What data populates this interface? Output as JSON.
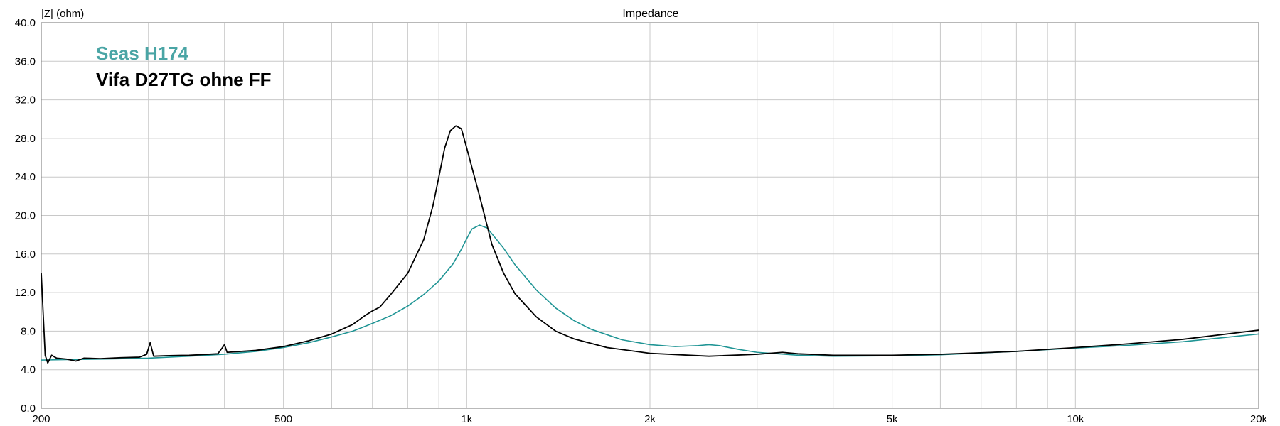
{
  "chart_data": {
    "type": "line",
    "title": "Impedance",
    "ylabel": "|Z| (ohm)",
    "xlabel": "",
    "xscale": "log",
    "xlim": [
      200,
      20000
    ],
    "ylim": [
      0,
      40
    ],
    "grid": true,
    "legend_position": "top-left",
    "y_ticks": [
      0,
      4,
      8,
      12,
      16,
      20,
      24,
      28,
      32,
      36,
      40
    ],
    "y_tick_labels": [
      "0.0",
      "4.0",
      "8.0",
      "12.0",
      "16.0",
      "20.0",
      "24.0",
      "28.0",
      "32.0",
      "36.0",
      "40.0"
    ],
    "x_ticks": [
      200,
      500,
      1000,
      2000,
      5000,
      10000,
      20000
    ],
    "x_tick_labels": [
      "200",
      "500",
      "1k",
      "2k",
      "5k",
      "10k",
      "20k"
    ],
    "x_minor_grid": [
      300,
      400,
      600,
      700,
      800,
      900,
      3000,
      4000,
      6000,
      7000,
      8000,
      9000
    ],
    "series": [
      {
        "name": "Seas H174",
        "color": "#1e9494",
        "legend_color": "#4aa5a5",
        "points": [
          [
            200,
            5.0
          ],
          [
            220,
            5.05
          ],
          [
            250,
            5.1
          ],
          [
            300,
            5.2
          ],
          [
            350,
            5.4
          ],
          [
            400,
            5.6
          ],
          [
            450,
            5.9
          ],
          [
            500,
            6.3
          ],
          [
            550,
            6.8
          ],
          [
            600,
            7.4
          ],
          [
            650,
            8.0
          ],
          [
            700,
            8.8
          ],
          [
            750,
            9.6
          ],
          [
            800,
            10.6
          ],
          [
            850,
            11.8
          ],
          [
            900,
            13.2
          ],
          [
            950,
            15.0
          ],
          [
            980,
            16.5
          ],
          [
            1000,
            17.6
          ],
          [
            1020,
            18.6
          ],
          [
            1050,
            19.0
          ],
          [
            1080,
            18.7
          ],
          [
            1100,
            18.1
          ],
          [
            1150,
            16.6
          ],
          [
            1200,
            14.9
          ],
          [
            1300,
            12.3
          ],
          [
            1400,
            10.4
          ],
          [
            1500,
            9.1
          ],
          [
            1600,
            8.2
          ],
          [
            1800,
            7.1
          ],
          [
            2000,
            6.6
          ],
          [
            2200,
            6.4
          ],
          [
            2400,
            6.5
          ],
          [
            2500,
            6.6
          ],
          [
            2600,
            6.5
          ],
          [
            2800,
            6.1
          ],
          [
            3000,
            5.8
          ],
          [
            3500,
            5.5
          ],
          [
            4000,
            5.4
          ],
          [
            5000,
            5.45
          ],
          [
            6000,
            5.55
          ],
          [
            8000,
            5.9
          ],
          [
            10000,
            6.25
          ],
          [
            12000,
            6.5
          ],
          [
            15000,
            6.9
          ],
          [
            20000,
            7.7
          ]
        ]
      },
      {
        "name": "Vifa D27TG ohne FF",
        "color": "#000000",
        "legend_color": "#000000",
        "points": [
          [
            200,
            14.0
          ],
          [
            203,
            5.5
          ],
          [
            205,
            4.7
          ],
          [
            208,
            5.5
          ],
          [
            212,
            5.2
          ],
          [
            220,
            5.1
          ],
          [
            228,
            4.9
          ],
          [
            235,
            5.2
          ],
          [
            250,
            5.15
          ],
          [
            270,
            5.25
          ],
          [
            290,
            5.3
          ],
          [
            298,
            5.6
          ],
          [
            302,
            6.8
          ],
          [
            306,
            5.4
          ],
          [
            320,
            5.45
          ],
          [
            350,
            5.5
          ],
          [
            390,
            5.65
          ],
          [
            397,
            6.3
          ],
          [
            400,
            6.6
          ],
          [
            404,
            5.8
          ],
          [
            450,
            6.0
          ],
          [
            500,
            6.4
          ],
          [
            550,
            7.0
          ],
          [
            600,
            7.7
          ],
          [
            650,
            8.7
          ],
          [
            680,
            9.6
          ],
          [
            700,
            10.1
          ],
          [
            720,
            10.5
          ],
          [
            750,
            11.8
          ],
          [
            800,
            14.0
          ],
          [
            850,
            17.5
          ],
          [
            880,
            21.0
          ],
          [
            900,
            24.0
          ],
          [
            920,
            27.0
          ],
          [
            940,
            28.8
          ],
          [
            960,
            29.3
          ],
          [
            980,
            29.0
          ],
          [
            1000,
            27.0
          ],
          [
            1050,
            22.0
          ],
          [
            1100,
            17.0
          ],
          [
            1150,
            14.0
          ],
          [
            1200,
            11.9
          ],
          [
            1300,
            9.5
          ],
          [
            1400,
            8.0
          ],
          [
            1500,
            7.2
          ],
          [
            1700,
            6.3
          ],
          [
            2000,
            5.7
          ],
          [
            2500,
            5.4
          ],
          [
            3000,
            5.6
          ],
          [
            3300,
            5.8
          ],
          [
            3500,
            5.65
          ],
          [
            4000,
            5.5
          ],
          [
            5000,
            5.5
          ],
          [
            6000,
            5.6
          ],
          [
            8000,
            5.9
          ],
          [
            10000,
            6.3
          ],
          [
            12000,
            6.65
          ],
          [
            15000,
            7.15
          ],
          [
            20000,
            8.1
          ]
        ]
      }
    ]
  }
}
